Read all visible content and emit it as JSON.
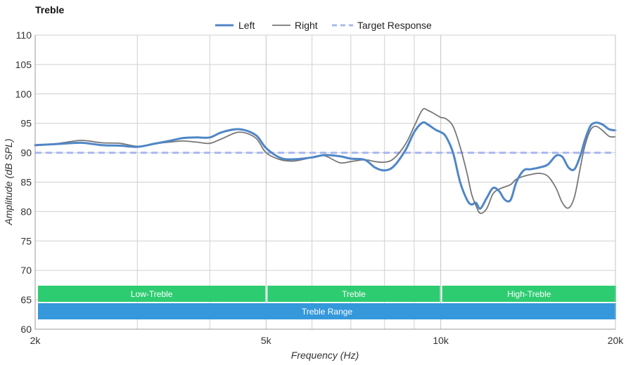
{
  "chart_data": {
    "type": "line",
    "title": "Treble",
    "xlabel": "Frequency (Hz)",
    "ylabel": "Amplitude (dB SPL)",
    "x_scale": "log",
    "xlim": [
      2000,
      20000
    ],
    "ylim": [
      60,
      110
    ],
    "x_ticks": [
      {
        "value": 2000,
        "label": "2k"
      },
      {
        "value": 5000,
        "label": "5k"
      },
      {
        "value": 10000,
        "label": "10k"
      },
      {
        "value": 20000,
        "label": "20k"
      }
    ],
    "x_minor_gridlines": [
      3000,
      4000,
      6000,
      7000,
      8000,
      9000
    ],
    "y_ticks": [
      60,
      65,
      70,
      75,
      80,
      85,
      90,
      95,
      100,
      105,
      110
    ],
    "grid": true,
    "legend": "top-center",
    "series": [
      {
        "name": "Left",
        "color": "#4f86c6",
        "style": "solid-thick",
        "points": [
          [
            2000,
            91.3
          ],
          [
            2200,
            91.5
          ],
          [
            2400,
            91.7
          ],
          [
            2600,
            91.3
          ],
          [
            2800,
            91.2
          ],
          [
            3000,
            91.0
          ],
          [
            3200,
            91.5
          ],
          [
            3400,
            92.0
          ],
          [
            3600,
            92.5
          ],
          [
            3800,
            92.6
          ],
          [
            4000,
            92.6
          ],
          [
            4200,
            93.5
          ],
          [
            4500,
            94.0
          ],
          [
            4800,
            93.0
          ],
          [
            5000,
            90.8
          ],
          [
            5300,
            89.1
          ],
          [
            5600,
            88.9
          ],
          [
            6000,
            89.2
          ],
          [
            6300,
            89.6
          ],
          [
            6700,
            89.4
          ],
          [
            7000,
            89.0
          ],
          [
            7400,
            88.8
          ],
          [
            7700,
            87.5
          ],
          [
            8000,
            87.0
          ],
          [
            8300,
            87.7
          ],
          [
            8700,
            90.5
          ],
          [
            9000,
            93.5
          ],
          [
            9300,
            95.1
          ],
          [
            9500,
            94.8
          ],
          [
            9800,
            93.9
          ],
          [
            10000,
            93.5
          ],
          [
            10200,
            92.8
          ],
          [
            10500,
            90.0
          ],
          [
            10800,
            85.0
          ],
          [
            11100,
            82.0
          ],
          [
            11300,
            81.2
          ],
          [
            11500,
            81.5
          ],
          [
            11700,
            80.5
          ],
          [
            12000,
            82.3
          ],
          [
            12300,
            84.0
          ],
          [
            12600,
            83.5
          ],
          [
            12900,
            82.0
          ],
          [
            13200,
            82.0
          ],
          [
            13500,
            85.0
          ],
          [
            13900,
            87.0
          ],
          [
            14300,
            87.2
          ],
          [
            14800,
            87.5
          ],
          [
            15300,
            88.0
          ],
          [
            15800,
            89.5
          ],
          [
            16200,
            89.3
          ],
          [
            16600,
            87.5
          ],
          [
            17000,
            87.2
          ],
          [
            17400,
            89.5
          ],
          [
            17700,
            92.0
          ],
          [
            18100,
            94.5
          ],
          [
            18500,
            95.1
          ],
          [
            19000,
            94.8
          ],
          [
            19500,
            94.0
          ],
          [
            20000,
            93.8
          ]
        ]
      },
      {
        "name": "Right",
        "color": "#777777",
        "style": "solid-thin",
        "points": [
          [
            2000,
            91.2
          ],
          [
            2200,
            91.6
          ],
          [
            2400,
            92.1
          ],
          [
            2600,
            91.7
          ],
          [
            2800,
            91.6
          ],
          [
            3000,
            91.1
          ],
          [
            3200,
            91.5
          ],
          [
            3400,
            91.8
          ],
          [
            3600,
            92.0
          ],
          [
            3800,
            91.8
          ],
          [
            4000,
            91.6
          ],
          [
            4200,
            92.4
          ],
          [
            4500,
            93.5
          ],
          [
            4800,
            92.5
          ],
          [
            5000,
            90.0
          ],
          [
            5300,
            88.8
          ],
          [
            5600,
            88.6
          ],
          [
            6000,
            89.2
          ],
          [
            6300,
            89.5
          ],
          [
            6700,
            88.3
          ],
          [
            7000,
            88.5
          ],
          [
            7400,
            88.8
          ],
          [
            7700,
            88.5
          ],
          [
            8000,
            88.4
          ],
          [
            8300,
            89.0
          ],
          [
            8700,
            91.5
          ],
          [
            9000,
            94.5
          ],
          [
            9300,
            97.3
          ],
          [
            9500,
            97.2
          ],
          [
            9800,
            96.5
          ],
          [
            10000,
            96.0
          ],
          [
            10200,
            95.8
          ],
          [
            10500,
            94.5
          ],
          [
            10800,
            91.0
          ],
          [
            11100,
            86.5
          ],
          [
            11300,
            83.0
          ],
          [
            11500,
            81.0
          ],
          [
            11700,
            79.7
          ],
          [
            12000,
            80.5
          ],
          [
            12300,
            83.0
          ],
          [
            12600,
            83.8
          ],
          [
            12900,
            84.2
          ],
          [
            13200,
            84.6
          ],
          [
            13500,
            85.5
          ],
          [
            13900,
            86.0
          ],
          [
            14300,
            86.3
          ],
          [
            14800,
            86.5
          ],
          [
            15300,
            86.0
          ],
          [
            15800,
            84.0
          ],
          [
            16200,
            81.5
          ],
          [
            16600,
            80.6
          ],
          [
            17000,
            82.5
          ],
          [
            17400,
            87.5
          ],
          [
            17700,
            91.0
          ],
          [
            18100,
            93.8
          ],
          [
            18500,
            94.5
          ],
          [
            19000,
            93.8
          ],
          [
            19500,
            92.8
          ],
          [
            20000,
            92.7
          ]
        ]
      },
      {
        "name": "Target Response",
        "color": "#a8b8f0",
        "style": "dashed",
        "points": [
          [
            2000,
            90
          ],
          [
            20000,
            90
          ]
        ]
      }
    ],
    "bands": [
      {
        "label": "Low-Treble",
        "from": 2000,
        "to": 5000,
        "row": 1,
        "color": "#2ecc71"
      },
      {
        "label": "Treble",
        "from": 5000,
        "to": 10000,
        "row": 1,
        "color": "#2ecc71"
      },
      {
        "label": "High-Treble",
        "from": 10000,
        "to": 20000,
        "row": 1,
        "color": "#2ecc71"
      },
      {
        "label": "Treble Range",
        "from": 2000,
        "to": 20000,
        "row": 2,
        "color": "#3498db"
      }
    ]
  }
}
